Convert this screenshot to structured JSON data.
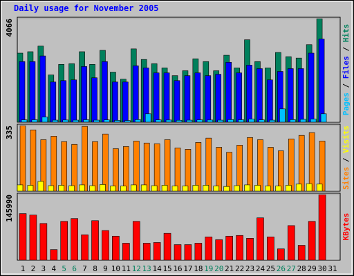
{
  "chart_data": [
    {
      "type": "bar",
      "title": "Daily usage for November 2005",
      "ylim": [
        0,
        4066
      ],
      "yticks": [
        4066
      ],
      "series": [
        {
          "name": "Hits",
          "color": "#00805c",
          "values": [
            2711,
            2766,
            2987,
            1853,
            2268,
            2296,
            2766,
            2268,
            2821,
            1964,
            1687,
            2877,
            2462,
            2296,
            2130,
            1826,
            2019,
            2489,
            2379,
            2019,
            2628,
            2130,
            3236,
            2379,
            2130,
            2738,
            2572,
            2517,
            3043,
            4066,
            0
          ]
        },
        {
          "name": "Files",
          "color": "#0000ff",
          "values": [
            2379,
            2379,
            2600,
            1577,
            1632,
            1660,
            2185,
            1743,
            2379,
            1577,
            1577,
            2213,
            2130,
            1936,
            1936,
            1632,
            1826,
            1936,
            1826,
            1881,
            2351,
            1936,
            2240,
            2102,
            1660,
            1992,
            2102,
            2102,
            2711,
            3264,
            0
          ]
        },
        {
          "name": "Pages",
          "color": "#00c0ff",
          "values": [
            90,
            95,
            200,
            80,
            85,
            80,
            95,
            80,
            90,
            70,
            65,
            100,
            330,
            90,
            85,
            75,
            80,
            90,
            85,
            80,
            100,
            95,
            120,
            90,
            80,
            520,
            100,
            110,
            120,
            330,
            0
          ]
        }
      ]
    },
    {
      "type": "bar",
      "ylim": [
        0,
        335
      ],
      "yticks": [
        335
      ],
      "series": [
        {
          "name": "Sites",
          "color": "#ff8000",
          "values": [
            335,
            313,
            263,
            281,
            253,
            239,
            331,
            253,
            292,
            217,
            228,
            256,
            246,
            242,
            263,
            221,
            214,
            249,
            271,
            224,
            199,
            235,
            274,
            263,
            224,
            206,
            267,
            285,
            299,
            256,
            0
          ]
        },
        {
          "name": "Visits",
          "color": "#ffff00",
          "values": [
            32,
            30,
            50,
            28,
            30,
            28,
            32,
            28,
            34,
            26,
            26,
            32,
            32,
            28,
            30,
            26,
            26,
            30,
            30,
            26,
            24,
            28,
            32,
            30,
            26,
            26,
            30,
            36,
            38,
            36,
            0
          ]
        }
      ]
    },
    {
      "type": "bar",
      "ylim": [
        0,
        145990
      ],
      "yticks": [
        145990
      ],
      "series": [
        {
          "name": "KBytes",
          "color": "#ff0000",
          "values": [
            103620,
            100480,
            81640,
            23550,
            86350,
            92630,
            56520,
            87920,
            65940,
            53380,
            37680,
            86350,
            37680,
            39250,
            59660,
            34540,
            34540,
            37680,
            51810,
            45530,
            53380,
            54950,
            48670,
            94200,
            51810,
            25120,
            76930,
            32970,
            86350,
            145990,
            0
          ]
        }
      ],
      "categories": [
        "1",
        "2",
        "3",
        "4",
        "5",
        "6",
        "7",
        "8",
        "9",
        "10",
        "11",
        "12",
        "13",
        "14",
        "15",
        "16",
        "17",
        "18",
        "19",
        "20",
        "21",
        "22",
        "23",
        "24",
        "25",
        "26",
        "27",
        "28",
        "29",
        "30",
        "31"
      ],
      "category_colors": [
        "#000000",
        "#000000",
        "#000000",
        "#000000",
        "#00805c",
        "#00805c",
        "#000000",
        "#000000",
        "#000000",
        "#000000",
        "#000000",
        "#00805c",
        "#00805c",
        "#000000",
        "#000000",
        "#000000",
        "#000000",
        "#000000",
        "#00805c",
        "#00805c",
        "#000000",
        "#000000",
        "#000000",
        "#000000",
        "#000000",
        "#00805c",
        "#00805c",
        "#000000",
        "#000000",
        "#000000",
        "#000000"
      ]
    }
  ]
}
